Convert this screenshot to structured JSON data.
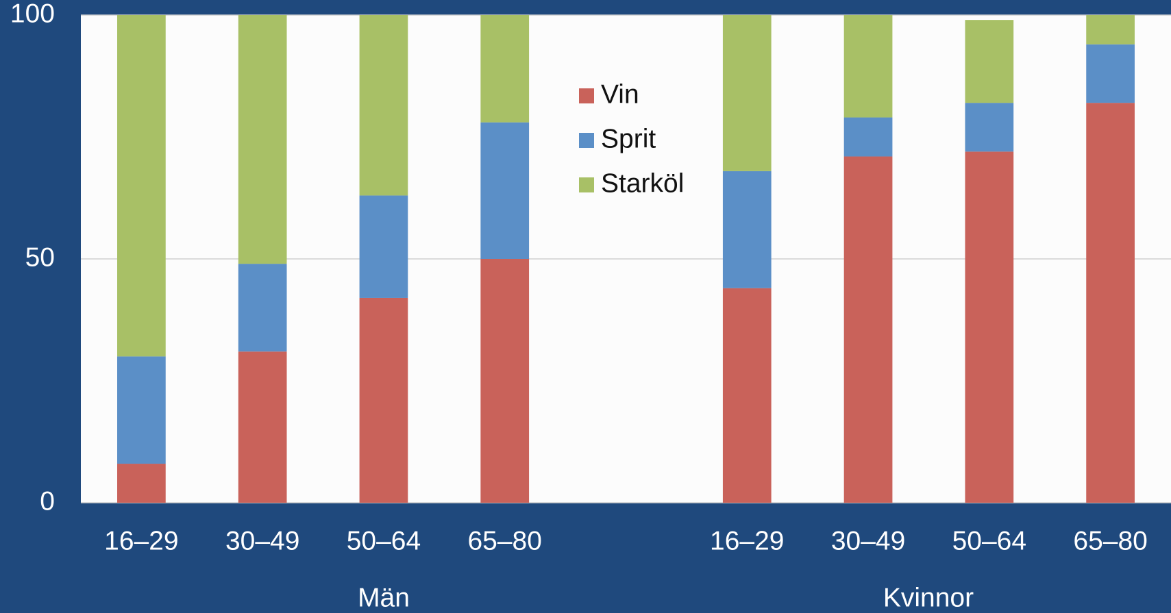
{
  "chart_data": {
    "type": "stacked_bar",
    "categories": [
      "16–29",
      "30–49",
      "50–64",
      "65–80",
      null,
      "16–29",
      "30–49",
      "50–64",
      "65–80"
    ],
    "groups": [
      "Män",
      "Kvinnor"
    ],
    "series": [
      {
        "name": "Vin",
        "color": "#c9625a",
        "values": [
          8,
          31,
          42,
          50,
          null,
          44,
          71,
          72,
          82
        ]
      },
      {
        "name": "Sprit",
        "color": "#5b8fc7",
        "values": [
          22,
          18,
          21,
          28,
          null,
          24,
          8,
          10,
          12
        ]
      },
      {
        "name": "Starköl",
        "color": "#a8c066",
        "values": [
          70,
          51,
          37,
          22,
          null,
          32,
          21,
          17,
          6
        ]
      }
    ],
    "ylim": [
      0,
      100
    ],
    "yticks": [
      0,
      50,
      100
    ],
    "grid": true,
    "legend": "upper center"
  }
}
